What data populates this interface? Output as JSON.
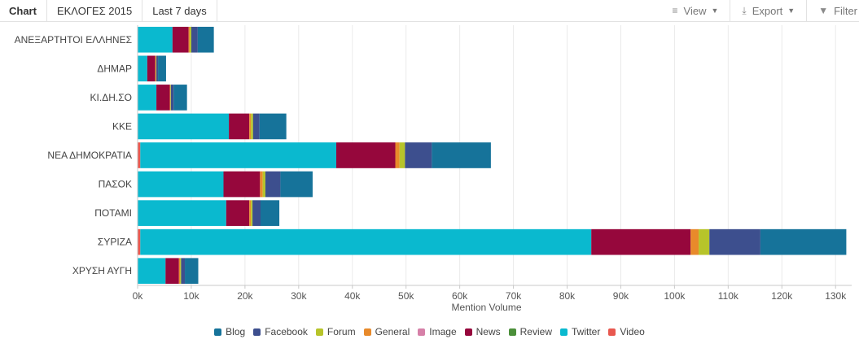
{
  "toolbar": {
    "tab_chart": "Chart",
    "tab_campaign": "ΕΚΛΟΓΕΣ 2015",
    "tab_range": "Last 7 days",
    "view_label": "View",
    "export_label": "Export",
    "filter_label": "Filter",
    "view_icon": "list-icon",
    "export_icon": "download-icon",
    "filter_icon": "funnel-icon"
  },
  "chart_data": {
    "type": "bar",
    "orientation": "horizontal",
    "stacked": true,
    "categories": [
      "ΑΝΕΞΑΡΤΗΤΟΙ ΕΛΛΗΝΕΣ",
      "ΔΗΜΑΡ",
      "ΚΙ.ΔΗ.ΣΟ",
      "ΚΚΕ",
      "ΝΕΑ ΔΗΜΟΚΡΑΤΙΑ",
      "ΠΑΣΟΚ",
      "ΠΟΤΑΜΙ",
      "ΣΥΡΙΖΑ",
      "ΧΡΥΣΗ ΑΥΓΗ"
    ],
    "xlabel": "Mention Volume",
    "xlim": [
      0,
      133000
    ],
    "x_ticks": [
      0,
      10000,
      20000,
      30000,
      40000,
      50000,
      60000,
      70000,
      80000,
      90000,
      100000,
      110000,
      120000,
      130000
    ],
    "x_tick_labels": [
      "0k",
      "10k",
      "20k",
      "30k",
      "40k",
      "50k",
      "60k",
      "70k",
      "80k",
      "90k",
      "100k",
      "110k",
      "120k",
      "130k"
    ],
    "grid": true,
    "legend_position": "bottom",
    "stack_order": [
      "Video",
      "Twitter",
      "News",
      "Image",
      "General",
      "Forum",
      "Review",
      "Facebook",
      "Blog"
    ],
    "legend_order": [
      "Blog",
      "Facebook",
      "Forum",
      "General",
      "Image",
      "News",
      "Review",
      "Twitter",
      "Video"
    ],
    "series": [
      {
        "name": "Blog",
        "color": "#16739a",
        "values": [
          3000,
          1500,
          2500,
          5000,
          11000,
          6000,
          3500,
          16000,
          2500
        ]
      },
      {
        "name": "Facebook",
        "color": "#3d4f8e",
        "values": [
          1200,
          300,
          500,
          1200,
          5000,
          2800,
          1500,
          9500,
          700
        ]
      },
      {
        "name": "Forum",
        "color": "#b7c42a",
        "values": [
          300,
          100,
          100,
          400,
          1000,
          500,
          300,
          2000,
          200
        ]
      },
      {
        "name": "General",
        "color": "#e88a2b",
        "values": [
          200,
          100,
          100,
          300,
          800,
          500,
          300,
          1500,
          200
        ]
      },
      {
        "name": "Image",
        "color": "#d680a8",
        "values": [
          0,
          0,
          0,
          0,
          0,
          0,
          0,
          0,
          0
        ]
      },
      {
        "name": "News",
        "color": "#96073c",
        "values": [
          3000,
          1500,
          2500,
          3800,
          11000,
          6800,
          4300,
          18500,
          2500
        ]
      },
      {
        "name": "Review",
        "color": "#4b8f3a",
        "values": [
          0,
          0,
          0,
          0,
          0,
          0,
          0,
          0,
          0
        ]
      },
      {
        "name": "Twitter",
        "color": "#0ab9cf",
        "values": [
          6500,
          1800,
          3500,
          17000,
          36500,
          16000,
          16500,
          84000,
          5200
        ]
      },
      {
        "name": "Video",
        "color": "#e8584f",
        "values": [
          0,
          0,
          0,
          0,
          500,
          0,
          0,
          500,
          0
        ]
      }
    ]
  }
}
